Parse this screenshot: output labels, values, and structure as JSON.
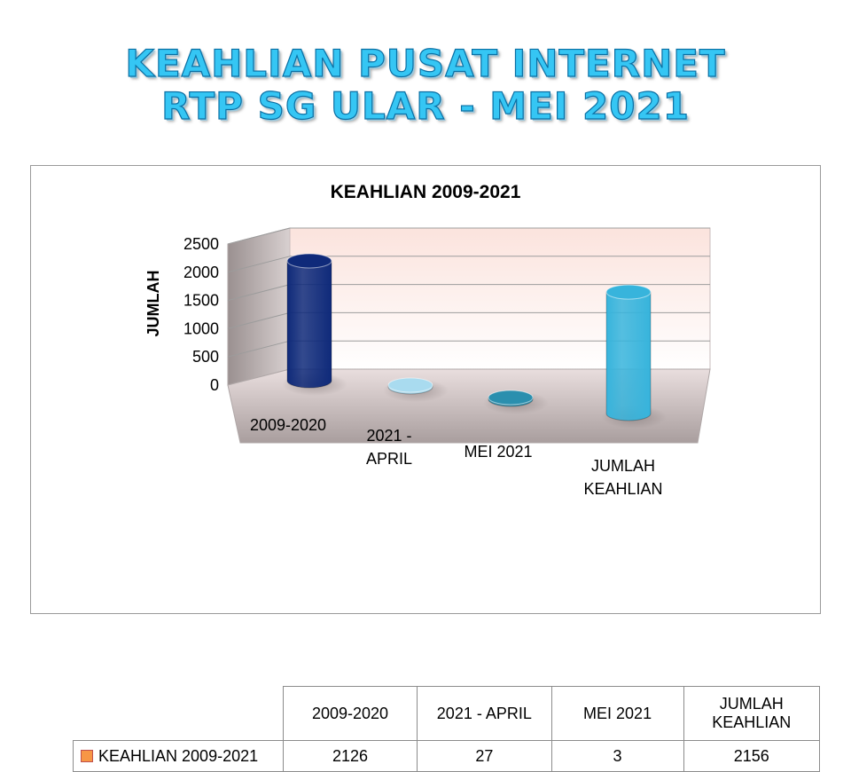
{
  "slide": {
    "title_line1": "KEAHLIAN PUSAT INTERNET",
    "title_line2": "RTP SG ULAR - MEI 2021"
  },
  "chart_data": {
    "type": "bar",
    "style": "3d-cylinder",
    "title": "KEAHLIAN 2009-2021",
    "ylabel": "JUMLAH",
    "xlabel": "",
    "ylim": [
      0,
      2500
    ],
    "yticks": [
      "0",
      "500",
      "1000",
      "1500",
      "2000",
      "2500"
    ],
    "grid": true,
    "categories": [
      "2009-2020",
      "2021 - APRIL",
      "MEI 2021",
      "JUMLAH KEAHLIAN"
    ],
    "category_lines": [
      [
        "2009-2020"
      ],
      [
        "2021 -",
        "APRIL"
      ],
      [
        "MEI 2021"
      ],
      [
        "JUMLAH",
        "KEAHLIAN"
      ]
    ],
    "series": [
      {
        "name": "KEAHLIAN 2009-2021",
        "values": [
          2126,
          27,
          3,
          2156
        ]
      }
    ],
    "bar_colors": [
      "#0f2a7a",
      "#a9dbef",
      "#2a8fae",
      "#37b4dc"
    ],
    "legend_color": "#f79646",
    "data_table": {
      "headers": [
        "2009-2020",
        "2021 -  APRIL",
        "MEI 2021",
        "JUMLAH KEAHLIAN"
      ],
      "row_label": "KEAHLIAN 2009-2021",
      "values": [
        "2126",
        "27",
        "3",
        "2156"
      ]
    }
  }
}
